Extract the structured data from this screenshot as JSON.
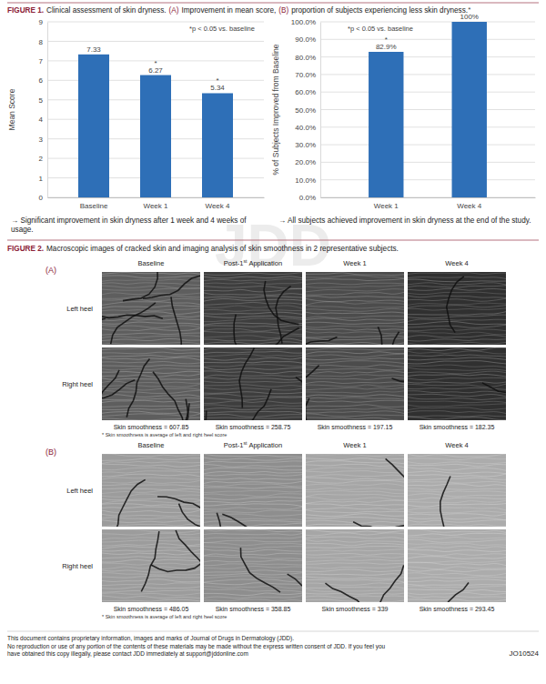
{
  "figure1": {
    "label": "FIGURE 1.",
    "caption": [
      {
        "text": "Clinical assessment of skin dryness.",
        "accent": false
      },
      {
        "text": "(A)",
        "accent": true
      },
      {
        "text": "Improvement in mean score,",
        "accent": false
      },
      {
        "text": "(B)",
        "accent": true
      },
      {
        "text": "proportion of subjects experiencing less skin dryness.",
        "accent": false
      }
    ]
  },
  "chart_data": [
    {
      "type": "bar",
      "categories": [
        "Baseline",
        "Week 1",
        "Week 4"
      ],
      "values": [
        7.33,
        6.27,
        5.34
      ],
      "color": "#2e6fb7",
      "ylim": [
        0,
        9
      ],
      "yticks": [
        0,
        1,
        2,
        3,
        4,
        5,
        6,
        7,
        8,
        9
      ],
      "grid": true,
      "data_labels": true,
      "y_label": "Mean Score",
      "annotation": "*p < 0.05 vs. baseline",
      "significance_mark": "*",
      "significant": [
        false,
        true,
        true
      ],
      "note": "→ Significant improvement in skin dryness after 1 week and 4 weeks of usage."
    },
    {
      "type": "bar",
      "categories": [
        "Week 1",
        "Week 4"
      ],
      "values": [
        82.9,
        100
      ],
      "value_labels": [
        "82.9%",
        "100%"
      ],
      "color": "#2e6fb7",
      "ylim": [
        0,
        100
      ],
      "yticks": [
        {
          "value": 0,
          "label": "0.0%"
        },
        {
          "value": 10,
          "label": "10.0%"
        },
        {
          "value": 20,
          "label": "20.0%"
        },
        {
          "value": 30,
          "label": "30.0%"
        },
        {
          "value": 40,
          "label": "40.0%"
        },
        {
          "value": 50,
          "label": "50.0%"
        },
        {
          "value": 60,
          "label": "60.0%"
        },
        {
          "value": 70,
          "label": "70.0%"
        },
        {
          "value": 80,
          "label": "80.0%"
        },
        {
          "value": 90,
          "label": "90.0%"
        },
        {
          "value": 100,
          "label": "100.0%"
        }
      ],
      "grid": true,
      "data_labels": true,
      "y_label": "% of Subjects Improved from Baseline",
      "annotation": "*p < 0.05 vs. baseline",
      "significance_mark": "*",
      "significant": [
        true,
        true
      ],
      "note": "→ All subjects achieved improvement in skin dryness at the end of the study."
    }
  ],
  "watermark": "JDD",
  "figure2": {
    "label": "FIGURE 2.",
    "caption": "Macroscopic images of cracked skin and imaging analysis of skin smoothness in 2 representative subjects.",
    "columns": [
      {
        "text": "Baseline"
      },
      {
        "text": "Post-1",
        "sup": "st",
        "after": "Application"
      },
      {
        "text": "Week 1"
      },
      {
        "text": "Week 4"
      }
    ],
    "rows": [
      "Left heel",
      "Right heel"
    ],
    "panels": [
      {
        "letter": "(A)",
        "smoothness": [
          "Skin smoothness = 607.85",
          "Skin smoothness = 258.75",
          "Skin smoothness = 197.15",
          "Skin smoothness = 182.35"
        ],
        "footnote": "* Skin smoothness is average of left and right heel score"
      },
      {
        "letter": "(B)",
        "smoothness": [
          "Skin smoothness = 486.05",
          "Skin smoothness = 358.85",
          "Skin smoothness = 339",
          "Skin smoothness = 293.45"
        ],
        "footnote": "* Skin smoothness is average of left and right heel score"
      }
    ]
  },
  "footer": {
    "lines": [
      "This document contains proprietary information, images and marks of Journal of Drugs in Dermatology (JDD).",
      "No reproduction or use of any portion of the contents of these materials may be made without the express written consent of JDD. If you feel you",
      "have obtained this copy illegally, please contact JDD immediately at support@jddonline.com"
    ],
    "code": "JO10524"
  }
}
